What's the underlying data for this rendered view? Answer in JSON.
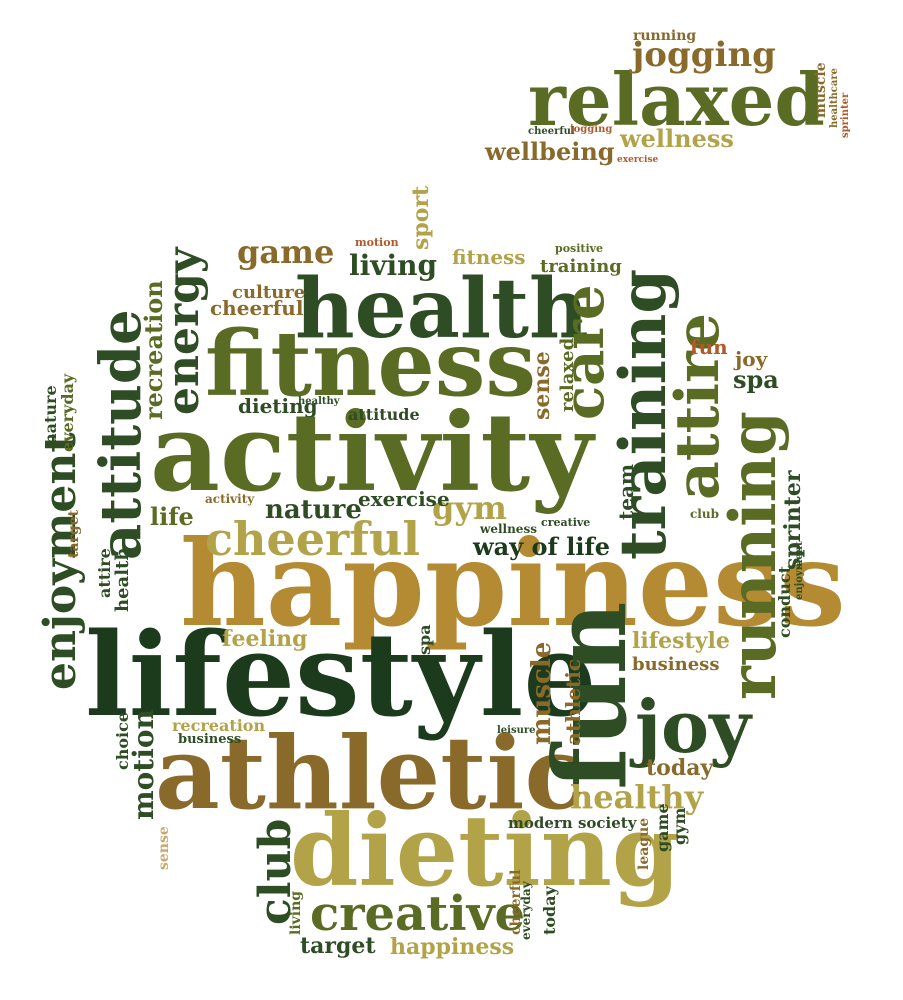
{
  "colors": {
    "dark_green": "#1c3b1c",
    "forest_green": "#2e4d24",
    "olive": "#5a6b23",
    "olive_light": "#6f7d2e",
    "gold": "#b48a32",
    "khaki": "#b2a349",
    "brown": "#8a6a2a",
    "rust": "#b05a2a",
    "pale_gold": "#c9a86a"
  },
  "words": [
    {
      "id": "happiness-main",
      "text": "happiness",
      "color": "gold"
    },
    {
      "id": "lifestyle-main",
      "text": "lifestyle",
      "color": "dark_green"
    },
    {
      "id": "activity-main",
      "text": "activity",
      "color": "olive"
    },
    {
      "id": "athletic-main",
      "text": "athletic",
      "color": "brown"
    },
    {
      "id": "dieting-main",
      "text": "dieting",
      "color": "khaki"
    },
    {
      "id": "fitness-main",
      "text": "fitness",
      "color": "olive"
    },
    {
      "id": "health-main",
      "text": "health",
      "color": "forest_green"
    },
    {
      "id": "relaxed-main",
      "text": "relaxed",
      "color": "olive"
    },
    {
      "id": "fun-main",
      "text": "fun",
      "color": "forest_green"
    },
    {
      "id": "joy-main",
      "text": "joy",
      "color": "forest_green"
    },
    {
      "id": "running-main",
      "text": "running",
      "color": "olive"
    },
    {
      "id": "training-main",
      "text": "training",
      "color": "forest_green"
    },
    {
      "id": "attire-main",
      "text": "attire",
      "color": "olive"
    },
    {
      "id": "care-main",
      "text": "care",
      "color": "olive"
    },
    {
      "id": "attitude-main",
      "text": "attitude",
      "color": "forest_green"
    },
    {
      "id": "energy-main",
      "text": "energy",
      "color": "forest_green"
    },
    {
      "id": "cheerful-main",
      "text": "cheerful",
      "color": "khaki"
    },
    {
      "id": "creative-main",
      "text": "creative",
      "color": "olive"
    },
    {
      "id": "club-main",
      "text": "club",
      "color": "forest_green"
    },
    {
      "id": "enjoyment-main",
      "text": "enjoyment",
      "color": "forest_green"
    },
    {
      "id": "healthy-main",
      "text": "healthy",
      "color": "khaki"
    },
    {
      "id": "jogging-main",
      "text": "jogging",
      "color": "brown"
    },
    {
      "id": "wellness-main",
      "text": "wellness",
      "color": "khaki"
    },
    {
      "id": "wellbeing-main",
      "text": "wellbeing",
      "color": "brown"
    },
    {
      "id": "game-main",
      "text": "game",
      "color": "brown"
    },
    {
      "id": "living-main",
      "text": "living",
      "color": "forest_green"
    },
    {
      "id": "fitness-small",
      "text": "fitness",
      "color": "khaki"
    },
    {
      "id": "training-small",
      "text": "training",
      "color": "olive"
    },
    {
      "id": "recreation-main",
      "text": "recreation",
      "color": "olive"
    },
    {
      "id": "muscle-main",
      "text": "muscle",
      "color": "brown"
    },
    {
      "id": "motion-main",
      "text": "motion",
      "color": "forest_green"
    },
    {
      "id": "sprinter-main",
      "text": "sprinter",
      "color": "forest_green"
    },
    {
      "id": "spa-main",
      "text": "spa",
      "color": "forest_green"
    },
    {
      "id": "gym-main",
      "text": "gym",
      "color": "khaki"
    },
    {
      "id": "nature-main",
      "text": "nature",
      "color": "forest_green"
    },
    {
      "id": "exercise-main",
      "text": "exercise",
      "color": "forest_green"
    },
    {
      "id": "way-of-life-main",
      "text": "way of life",
      "color": "dark_green"
    },
    {
      "id": "life-main",
      "text": "life",
      "color": "olive"
    },
    {
      "id": "dieting-small",
      "text": "dieting",
      "color": "forest_green"
    },
    {
      "id": "attitude-small",
      "text": "attitude",
      "color": "forest_green"
    },
    {
      "id": "feeling-main",
      "text": "feeling",
      "color": "khaki"
    },
    {
      "id": "lifestyle-small",
      "text": "lifestyle",
      "color": "khaki"
    },
    {
      "id": "business-main",
      "text": "business",
      "color": "brown"
    },
    {
      "id": "today-main",
      "text": "today",
      "color": "brown"
    },
    {
      "id": "target-main",
      "text": "target",
      "color": "forest_green"
    },
    {
      "id": "happiness-small",
      "text": "happiness",
      "color": "khaki"
    },
    {
      "id": "modern-society",
      "text": "modern society",
      "color": "forest_green"
    },
    {
      "id": "sport-main",
      "text": "sport",
      "color": "khaki"
    },
    {
      "id": "culture-main",
      "text": "culture",
      "color": "brown"
    },
    {
      "id": "cheerful-small",
      "text": "cheerful",
      "color": "brown"
    },
    {
      "id": "fun-small",
      "text": "fun",
      "color": "rust"
    },
    {
      "id": "joy-small",
      "text": "joy",
      "color": "brown"
    },
    {
      "id": "spa-small",
      "text": "spa",
      "color": "forest_green"
    },
    {
      "id": "sense-main",
      "text": "sense",
      "color": "brown"
    },
    {
      "id": "relaxed-small",
      "text": "relaxed",
      "color": "olive"
    },
    {
      "id": "athletic-small",
      "text": "athletic",
      "color": "brown"
    },
    {
      "id": "team-main",
      "text": "team",
      "color": "forest_green"
    },
    {
      "id": "choice-main",
      "text": "choice",
      "color": "forest_green"
    },
    {
      "id": "conduct-main",
      "text": "conduct",
      "color": "forest_green"
    },
    {
      "id": "health-small",
      "text": "health",
      "color": "forest_green"
    },
    {
      "id": "attire-small",
      "text": "attire",
      "color": "forest_green"
    },
    {
      "id": "everyday-main",
      "text": "everyday",
      "color": "olive"
    },
    {
      "id": "nature-small",
      "text": "nature",
      "color": "forest_green"
    },
    {
      "id": "league-main",
      "text": "league",
      "color": "brown"
    },
    {
      "id": "running-small",
      "text": "running",
      "color": "brown"
    },
    {
      "id": "muscle-small",
      "text": "muscle",
      "color": "brown"
    },
    {
      "id": "healthcare-small",
      "text": "healthcare",
      "color": "brown"
    },
    {
      "id": "sprinter-small",
      "text": "sprinter",
      "color": "rust"
    },
    {
      "id": "business-small",
      "text": "business",
      "color": "forest_green"
    },
    {
      "id": "cheerful-tiny",
      "text": "cheerful",
      "color": "forest_green"
    },
    {
      "id": "jogging-tiny",
      "text": "jogging",
      "color": "rust"
    },
    {
      "id": "exercise-tiny",
      "text": "exercise",
      "color": "rust"
    },
    {
      "id": "positive-small",
      "text": "positive",
      "color": "olive"
    },
    {
      "id": "healthy-small",
      "text": "healthy",
      "color": "forest_green"
    },
    {
      "id": "recreation-small",
      "text": "recreation",
      "color": "khaki"
    },
    {
      "id": "creative-small",
      "text": "creative",
      "color": "forest_green"
    },
    {
      "id": "wellness-small",
      "text": "wellness",
      "color": "forest_green"
    },
    {
      "id": "leisure-small",
      "text": "leisure",
      "color": "forest_green"
    },
    {
      "id": "activity-small",
      "text": "activity",
      "color": "brown"
    },
    {
      "id": "motion-tiny",
      "text": "motion",
      "color": "rust"
    },
    {
      "id": "enjoyment-small",
      "text": "enjoyment",
      "color": "forest_green"
    },
    {
      "id": "club-small",
      "text": "club",
      "color": "olive"
    },
    {
      "id": "target-small",
      "text": "target",
      "color": "brown"
    },
    {
      "id": "living-small",
      "text": "living",
      "color": "olive"
    },
    {
      "id": "cheerful-small2",
      "text": "cheerful",
      "color": "brown"
    },
    {
      "id": "today-small",
      "text": "today",
      "color": "forest_green"
    },
    {
      "id": "everyday-small",
      "text": "everyday",
      "color": "forest_green"
    },
    {
      "id": "sense-small",
      "text": "sense",
      "color": "pale_gold"
    },
    {
      "id": "game-small",
      "text": "game",
      "color": "forest_green"
    },
    {
      "id": "gym-small",
      "text": "gym",
      "color": "forest_green"
    }
  ]
}
